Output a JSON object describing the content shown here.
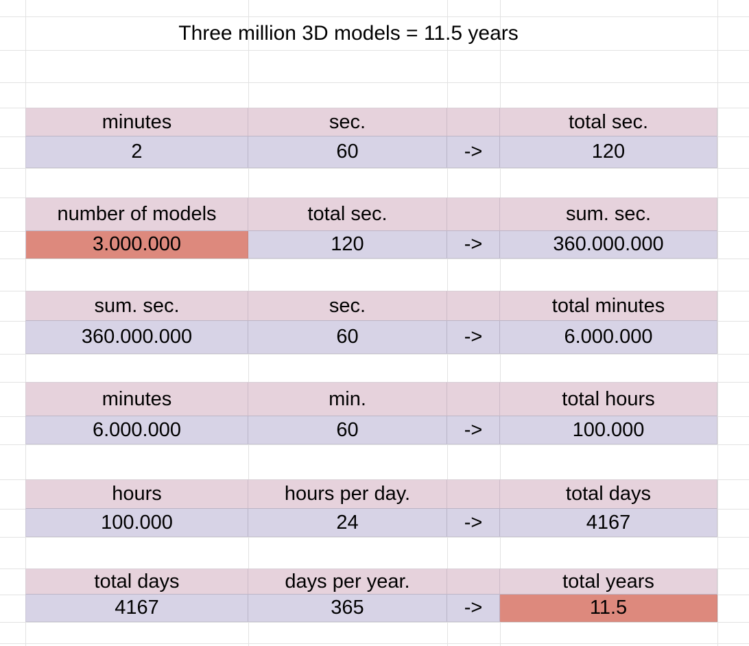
{
  "title": "Three million 3D models = 11.5 years",
  "arrow": "->",
  "colors": {
    "header_fill": "#e6d2dc",
    "value_fill": "#d7d3e6",
    "highlight_fill": "#dd897d",
    "gridline": "#e2e2e2",
    "text": "#000000"
  },
  "blocks": [
    {
      "headers": [
        "minutes",
        "sec.",
        "",
        "total sec."
      ],
      "values": [
        "2",
        "60",
        "->",
        "120"
      ],
      "highlight_value_index": null
    },
    {
      "headers": [
        "number of models",
        "total sec.",
        "",
        "sum. sec."
      ],
      "values": [
        "3.000.000",
        "120",
        "->",
        "360.000.000"
      ],
      "highlight_value_index": 0
    },
    {
      "headers": [
        "sum. sec.",
        "sec.",
        "",
        "total minutes"
      ],
      "values": [
        "360.000.000",
        "60",
        "->",
        "6.000.000"
      ],
      "highlight_value_index": null
    },
    {
      "headers": [
        "minutes",
        "min.",
        "",
        "total hours"
      ],
      "values": [
        "6.000.000",
        "60",
        "->",
        "100.000"
      ],
      "highlight_value_index": null
    },
    {
      "headers": [
        "hours",
        "hours per day.",
        "",
        "total days"
      ],
      "values": [
        "100.000",
        "24",
        "->",
        "4167"
      ],
      "highlight_value_index": null
    },
    {
      "headers": [
        "total days",
        "days per year.",
        "",
        "total years"
      ],
      "values": [
        "4167",
        "365",
        "->",
        "11.5"
      ],
      "highlight_value_index": 2
    }
  ]
}
